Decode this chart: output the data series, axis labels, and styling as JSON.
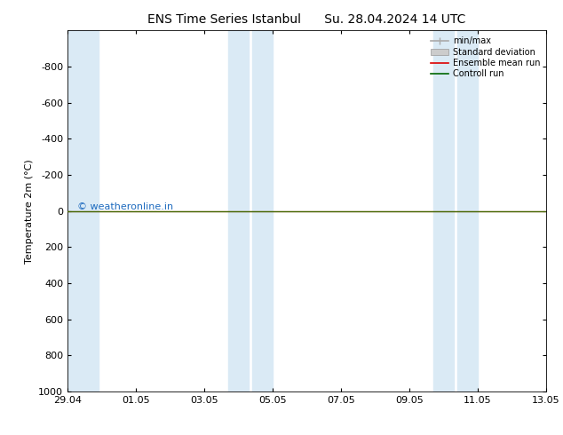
{
  "title_left": "ENS Time Series Istanbul",
  "title_right": "Su. 28.04.2024 14 UTC",
  "ylabel": "Temperature 2m (°C)",
  "background_color": "#ffffff",
  "plot_bg_color": "#ffffff",
  "ylim_bottom": 1000,
  "ylim_top": -1000,
  "yticks": [
    -800,
    -600,
    -400,
    -200,
    0,
    200,
    400,
    600,
    800,
    1000
  ],
  "xtick_labels": [
    "29.04",
    "01.05",
    "03.05",
    "05.05",
    "07.05",
    "09.05",
    "11.05",
    "13.05"
  ],
  "xtick_positions": [
    0,
    2,
    4,
    6,
    8,
    10,
    12,
    14
  ],
  "x_start": 0,
  "x_end": 14,
  "shaded_regions": [
    {
      "x_start": 0.0,
      "x_end": 0.9,
      "color": "#daeaf5"
    },
    {
      "x_start": 4.7,
      "x_end": 5.3,
      "color": "#daeaf5"
    },
    {
      "x_start": 5.4,
      "x_end": 6.0,
      "color": "#daeaf5"
    },
    {
      "x_start": 10.7,
      "x_end": 11.3,
      "color": "#daeaf5"
    },
    {
      "x_start": 11.4,
      "x_end": 12.0,
      "color": "#daeaf5"
    }
  ],
  "green_line_y": 0,
  "red_line_y": 0,
  "watermark_text": "© weatheronline.in",
  "watermark_color": "#1e6bbf",
  "watermark_fontsize": 8,
  "legend_items": [
    {
      "label": "min/max",
      "color": "#aaaaaa",
      "style": "hline"
    },
    {
      "label": "Standard deviation",
      "color": "#cccccc",
      "style": "box"
    },
    {
      "label": "Ensemble mean run",
      "color": "#dd0000",
      "style": "line"
    },
    {
      "label": "Controll run",
      "color": "#006600",
      "style": "line"
    }
  ],
  "title_fontsize": 10,
  "axis_label_fontsize": 8,
  "tick_fontsize": 8,
  "legend_fontsize": 7
}
